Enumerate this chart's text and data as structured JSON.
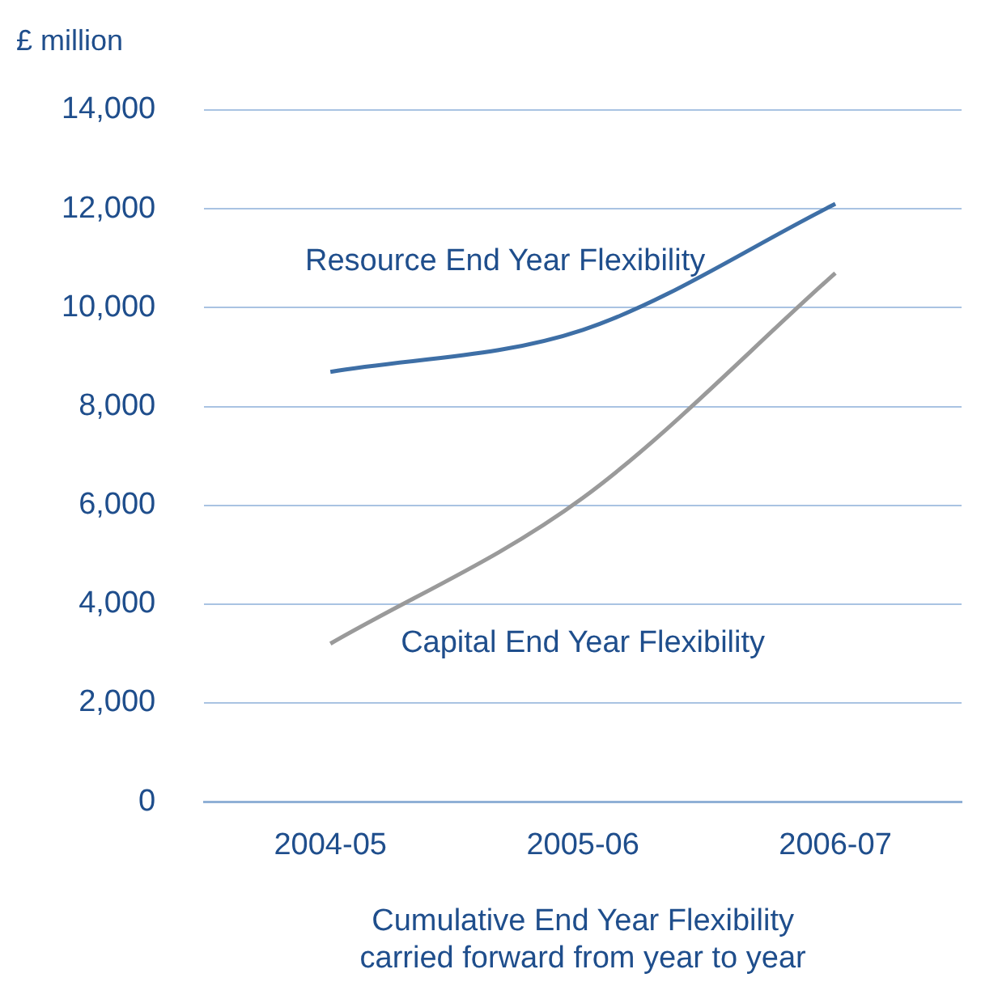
{
  "chart_data": {
    "type": "line",
    "ylabel": "£ million",
    "xlabel": "Cumulative End Year Flexibility\ncarried forward from year to year",
    "categories": [
      "2004-05",
      "2005-06",
      "2006-07"
    ],
    "series": [
      {
        "name": "Resource End Year Flexibility",
        "color": "#3e6fa6",
        "values": [
          8700,
          9550,
          12100
        ]
      },
      {
        "name": "Capital End Year Flexibility",
        "color": "#9a9a9a",
        "values": [
          3200,
          6150,
          10700
        ]
      }
    ],
    "ylim": [
      0,
      14000
    ],
    "yticks": [
      0,
      {
        "value": 2000,
        "label": "2,000"
      },
      {
        "value": 4000,
        "label": "4,000"
      },
      {
        "value": 6000,
        "label": "6,000"
      },
      {
        "value": 8000,
        "label": "8,000"
      },
      {
        "value": 10000,
        "label": "10,000"
      },
      {
        "value": 12000,
        "label": "12,000"
      },
      {
        "value": 14000,
        "label": "14,000"
      }
    ],
    "grid": "y",
    "legend": false,
    "marker": "none",
    "line_style": "solid"
  }
}
